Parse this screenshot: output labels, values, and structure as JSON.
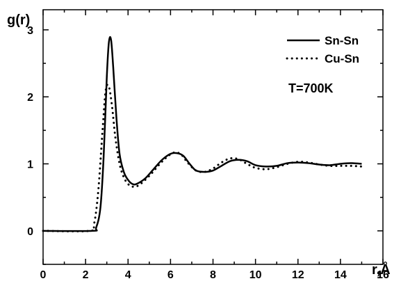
{
  "chart_data": {
    "type": "line",
    "ylabel": "g(r)",
    "xlabel": "r,Å",
    "annotation": "T=700K",
    "xlim": [
      0,
      16
    ],
    "ylim": [
      -0.5,
      3.3
    ],
    "xticks": [
      "0",
      "2",
      "4",
      "6",
      "8",
      "10",
      "12",
      "14",
      "16"
    ],
    "yticks": [
      "0",
      "1",
      "2",
      "3"
    ],
    "legend_position": "top-right",
    "series": [
      {
        "name": "Sn-Sn",
        "style": "solid",
        "color": "#000000",
        "points": [
          [
            0,
            0
          ],
          [
            2.3,
            0
          ],
          [
            2.5,
            0.05
          ],
          [
            2.7,
            0.35
          ],
          [
            2.85,
            1.1
          ],
          [
            3.0,
            2.3
          ],
          [
            3.1,
            2.82
          ],
          [
            3.2,
            2.85
          ],
          [
            3.3,
            2.45
          ],
          [
            3.45,
            1.7
          ],
          [
            3.6,
            1.15
          ],
          [
            3.8,
            0.88
          ],
          [
            4.0,
            0.76
          ],
          [
            4.2,
            0.7
          ],
          [
            4.4,
            0.7
          ],
          [
            4.8,
            0.78
          ],
          [
            5.2,
            0.92
          ],
          [
            5.6,
            1.06
          ],
          [
            6.0,
            1.15
          ],
          [
            6.3,
            1.16
          ],
          [
            6.6,
            1.12
          ],
          [
            6.9,
            1.0
          ],
          [
            7.2,
            0.9
          ],
          [
            7.6,
            0.88
          ],
          [
            8.0,
            0.9
          ],
          [
            8.4,
            0.97
          ],
          [
            8.8,
            1.04
          ],
          [
            9.2,
            1.06
          ],
          [
            9.6,
            1.04
          ],
          [
            10.0,
            0.98
          ],
          [
            10.5,
            0.96
          ],
          [
            11.0,
            0.97
          ],
          [
            11.5,
            1.01
          ],
          [
            12.0,
            1.02
          ],
          [
            12.5,
            1.01
          ],
          [
            13.0,
            0.99
          ],
          [
            13.5,
            0.98
          ],
          [
            14.0,
            1.0
          ],
          [
            14.5,
            1.01
          ],
          [
            15.0,
            1.0
          ]
        ]
      },
      {
        "name": "Cu-Sn",
        "style": "dotted",
        "color": "#000000",
        "points": [
          [
            0,
            0
          ],
          [
            2.2,
            0
          ],
          [
            2.4,
            0.1
          ],
          [
            2.6,
            0.6
          ],
          [
            2.8,
            1.5
          ],
          [
            2.95,
            2.1
          ],
          [
            3.1,
            2.15
          ],
          [
            3.25,
            1.85
          ],
          [
            3.4,
            1.4
          ],
          [
            3.6,
            1.0
          ],
          [
            3.8,
            0.8
          ],
          [
            4.0,
            0.7
          ],
          [
            4.2,
            0.66
          ],
          [
            4.5,
            0.68
          ],
          [
            5.0,
            0.82
          ],
          [
            5.5,
            1.0
          ],
          [
            5.9,
            1.12
          ],
          [
            6.2,
            1.17
          ],
          [
            6.5,
            1.14
          ],
          [
            6.8,
            1.02
          ],
          [
            7.2,
            0.9
          ],
          [
            7.6,
            0.88
          ],
          [
            8.0,
            0.93
          ],
          [
            8.4,
            1.02
          ],
          [
            8.8,
            1.08
          ],
          [
            9.2,
            1.07
          ],
          [
            9.6,
            1.0
          ],
          [
            10.0,
            0.94
          ],
          [
            10.5,
            0.92
          ],
          [
            11.0,
            0.95
          ],
          [
            11.5,
            1.0
          ],
          [
            12.0,
            1.03
          ],
          [
            12.5,
            1.02
          ],
          [
            13.0,
            0.99
          ],
          [
            13.5,
            0.97
          ],
          [
            14.0,
            0.97
          ],
          [
            14.5,
            0.97
          ],
          [
            15.0,
            0.96
          ]
        ]
      }
    ]
  }
}
